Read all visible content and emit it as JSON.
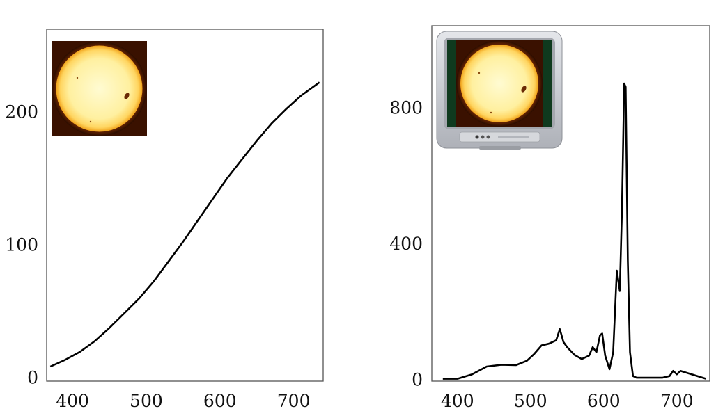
{
  "chart_data": [
    {
      "type": "line",
      "inset_image": "sun-photo",
      "x_ticks": [
        "400",
        "500",
        "600",
        "700"
      ],
      "y_ticks": [
        "0",
        "100",
        "200"
      ],
      "xlim": [
        365,
        740
      ],
      "ylim": [
        -3,
        262
      ],
      "grid": false,
      "legend": "none",
      "series": [
        {
          "color": "#000000",
          "x": [
            370,
            390,
            410,
            430,
            450,
            470,
            490,
            510,
            530,
            550,
            570,
            590,
            610,
            630,
            650,
            670,
            690,
            710,
            735
          ],
          "y": [
            8,
            13,
            19,
            27,
            37,
            48,
            59,
            72,
            87,
            102,
            118,
            134,
            150,
            164,
            178,
            191,
            202,
            212,
            222
          ]
        }
      ]
    },
    {
      "type": "line",
      "inset_image": "tv-with-sun-photo",
      "x_ticks": [
        "400",
        "500",
        "600",
        "700"
      ],
      "y_ticks": [
        "0",
        "400",
        "800"
      ],
      "xlim": [
        365,
        745
      ],
      "ylim": [
        -5,
        1040
      ],
      "grid": false,
      "legend": "none",
      "series": [
        {
          "color": "#000000",
          "x": [
            380,
            400,
            420,
            440,
            460,
            480,
            495,
            505,
            515,
            525,
            535,
            540,
            545,
            550,
            560,
            570,
            580,
            585,
            590,
            595,
            598,
            602,
            608,
            613,
            618,
            620,
            622,
            625,
            628,
            630,
            633,
            636,
            640,
            645,
            660,
            680,
            690,
            695,
            700,
            705,
            740
          ],
          "y": [
            2,
            2,
            15,
            38,
            43,
            42,
            55,
            75,
            100,
            105,
            115,
            148,
            110,
            95,
            72,
            60,
            70,
            95,
            80,
            130,
            135,
            70,
            30,
            80,
            320,
            290,
            260,
            500,
            870,
            860,
            350,
            80,
            10,
            5,
            5,
            5,
            10,
            25,
            15,
            25,
            2
          ]
        }
      ]
    }
  ],
  "colors": {
    "line": "#000000",
    "axis": "#555555",
    "sun_core": "#fff3a6",
    "sun_rim": "#f0a21a",
    "sun_bg": "#3a1100"
  }
}
